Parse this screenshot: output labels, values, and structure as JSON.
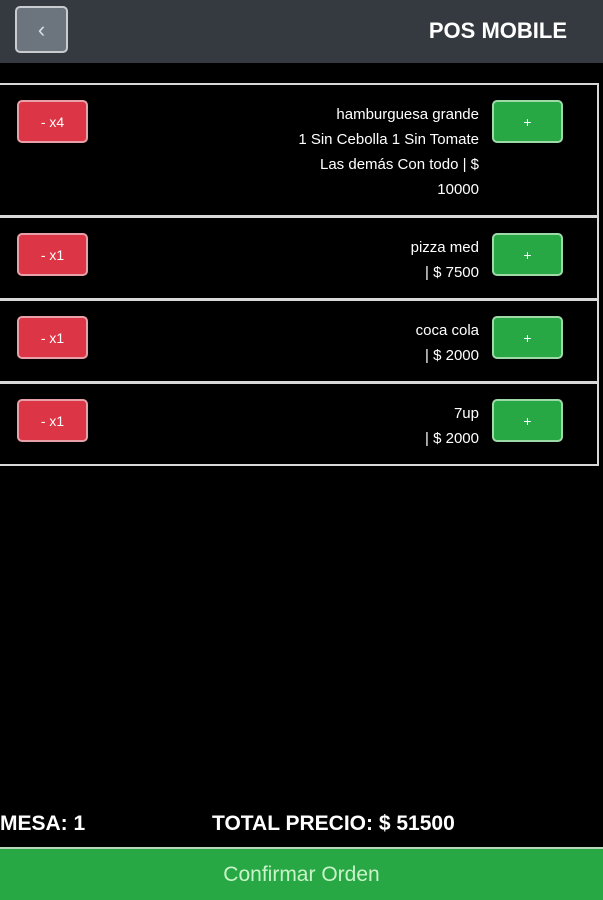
{
  "header": {
    "title": "POS MOBILE",
    "back_icon": "chevron-left-icon"
  },
  "items": [
    {
      "qty_label": "- x4",
      "lines": [
        "hamburguesa grande",
        "1 Sin Cebolla 1 Sin Tomate",
        "Las demás Con todo | $",
        "10000"
      ],
      "plus_label": "+"
    },
    {
      "qty_label": "- x1",
      "lines": [
        "pizza med",
        "| $ 7500"
      ],
      "plus_label": "+"
    },
    {
      "qty_label": "- x1",
      "lines": [
        "coca cola",
        "| $ 2000"
      ],
      "plus_label": "+"
    },
    {
      "qty_label": "- x1",
      "lines": [
        "7up",
        "| $ 2000"
      ],
      "plus_label": "+"
    }
  ],
  "footer": {
    "mesa": "MESA: 1",
    "total": "TOTAL PRECIO: $ 51500",
    "confirm_label": "Confirmar Orden"
  },
  "colors": {
    "header": "#343a40",
    "danger": "#dc3545",
    "success": "#28a745"
  }
}
